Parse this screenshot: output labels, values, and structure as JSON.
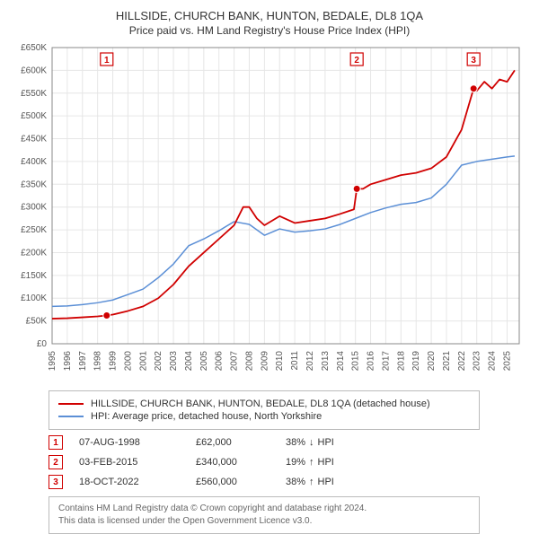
{
  "title": "HILLSIDE, CHURCH BANK, HUNTON, BEDALE, DL8 1QA",
  "subtitle": "Price paid vs. HM Land Registry's House Price Index (HPI)",
  "chart": {
    "type": "line",
    "background_color": "#ffffff",
    "grid_color": "#e6e6e6",
    "axis_color": "#888888",
    "text_color": "#555555",
    "x": {
      "min": 1995,
      "max": 2025.8,
      "ticks": [
        1995,
        1996,
        1997,
        1998,
        1999,
        2000,
        2001,
        2002,
        2003,
        2004,
        2005,
        2006,
        2007,
        2008,
        2009,
        2010,
        2011,
        2012,
        2013,
        2014,
        2015,
        2016,
        2017,
        2018,
        2019,
        2020,
        2021,
        2022,
        2023,
        2024,
        2025
      ],
      "tick_labels": [
        "1995",
        "1996",
        "1997",
        "1998",
        "1999",
        "2000",
        "2001",
        "2002",
        "2003",
        "2004",
        "2005",
        "2006",
        "2007",
        "2008",
        "2009",
        "2010",
        "2011",
        "2012",
        "2013",
        "2014",
        "2015",
        "2016",
        "2017",
        "2018",
        "2019",
        "2020",
        "2021",
        "2022",
        "2023",
        "2024",
        "2025"
      ],
      "label_fontsize": 10,
      "rotation": -90
    },
    "y": {
      "min": 0,
      "max": 650000,
      "ticks": [
        0,
        50000,
        100000,
        150000,
        200000,
        250000,
        300000,
        350000,
        400000,
        450000,
        500000,
        550000,
        600000,
        650000
      ],
      "tick_labels": [
        "£0",
        "£50K",
        "£100K",
        "£150K",
        "£200K",
        "£250K",
        "£300K",
        "£350K",
        "£400K",
        "£450K",
        "£500K",
        "£550K",
        "£600K",
        "£650K"
      ],
      "label_fontsize": 10
    },
    "series": [
      {
        "name": "HILLSIDE, CHURCH BANK, HUNTON, BEDALE, DL8 1QA (detached house)",
        "color": "#d00000",
        "line_width": 1.8,
        "points": [
          [
            1995,
            55000
          ],
          [
            1996,
            56000
          ],
          [
            1997,
            58000
          ],
          [
            1998,
            60000
          ],
          [
            1998.6,
            62000
          ],
          [
            1999,
            64000
          ],
          [
            2000,
            72000
          ],
          [
            2001,
            82000
          ],
          [
            2002,
            100000
          ],
          [
            2003,
            130000
          ],
          [
            2004,
            170000
          ],
          [
            2005,
            200000
          ],
          [
            2006,
            230000
          ],
          [
            2007,
            260000
          ],
          [
            2007.6,
            300000
          ],
          [
            2008,
            300000
          ],
          [
            2008.5,
            275000
          ],
          [
            2009,
            260000
          ],
          [
            2010,
            280000
          ],
          [
            2011,
            265000
          ],
          [
            2012,
            270000
          ],
          [
            2013,
            275000
          ],
          [
            2014,
            285000
          ],
          [
            2014.9,
            295000
          ],
          [
            2015.09,
            340000
          ],
          [
            2015.5,
            340000
          ],
          [
            2016,
            350000
          ],
          [
            2017,
            360000
          ],
          [
            2018,
            370000
          ],
          [
            2019,
            375000
          ],
          [
            2020,
            385000
          ],
          [
            2021,
            410000
          ],
          [
            2022,
            470000
          ],
          [
            2022.79,
            560000
          ],
          [
            2023,
            555000
          ],
          [
            2023.5,
            575000
          ],
          [
            2024,
            560000
          ],
          [
            2024.5,
            580000
          ],
          [
            2025,
            575000
          ],
          [
            2025.5,
            600000
          ]
        ]
      },
      {
        "name": "HPI: Average price, detached house, North Yorkshire",
        "color": "#5b8fd6",
        "line_width": 1.5,
        "points": [
          [
            1995,
            82000
          ],
          [
            1996,
            83000
          ],
          [
            1997,
            86000
          ],
          [
            1998,
            90000
          ],
          [
            1999,
            96000
          ],
          [
            2000,
            108000
          ],
          [
            2001,
            120000
          ],
          [
            2002,
            145000
          ],
          [
            2003,
            175000
          ],
          [
            2004,
            215000
          ],
          [
            2005,
            230000
          ],
          [
            2006,
            248000
          ],
          [
            2007,
            268000
          ],
          [
            2008,
            262000
          ],
          [
            2009,
            238000
          ],
          [
            2010,
            252000
          ],
          [
            2011,
            245000
          ],
          [
            2012,
            248000
          ],
          [
            2013,
            252000
          ],
          [
            2014,
            262000
          ],
          [
            2015,
            275000
          ],
          [
            2016,
            288000
          ],
          [
            2017,
            298000
          ],
          [
            2018,
            306000
          ],
          [
            2019,
            310000
          ],
          [
            2020,
            320000
          ],
          [
            2021,
            350000
          ],
          [
            2022,
            392000
          ],
          [
            2023,
            400000
          ],
          [
            2024,
            405000
          ],
          [
            2025,
            410000
          ],
          [
            2025.5,
            412000
          ]
        ]
      }
    ],
    "markers": [
      {
        "n": "1",
        "x": 1998.6,
        "y": 62000
      },
      {
        "n": "2",
        "x": 2015.09,
        "y": 340000
      },
      {
        "n": "3",
        "x": 2022.79,
        "y": 560000
      }
    ]
  },
  "legend": {
    "items": [
      {
        "color": "#d00000",
        "label": "HILLSIDE, CHURCH BANK, HUNTON, BEDALE, DL8 1QA (detached house)"
      },
      {
        "color": "#5b8fd6",
        "label": "HPI: Average price, detached house, North Yorkshire"
      }
    ]
  },
  "events": [
    {
      "n": "1",
      "date": "07-AUG-1998",
      "price": "£62,000",
      "delta_pct": "38%",
      "delta_dir": "down",
      "delta_suffix": "HPI"
    },
    {
      "n": "2",
      "date": "03-FEB-2015",
      "price": "£340,000",
      "delta_pct": "19%",
      "delta_dir": "up",
      "delta_suffix": "HPI"
    },
    {
      "n": "3",
      "date": "18-OCT-2022",
      "price": "£560,000",
      "delta_pct": "38%",
      "delta_dir": "up",
      "delta_suffix": "HPI"
    }
  ],
  "footer": {
    "line1": "Contains HM Land Registry data © Crown copyright and database right 2024.",
    "line2": "This data is licensed under the Open Government Licence v3.0."
  }
}
